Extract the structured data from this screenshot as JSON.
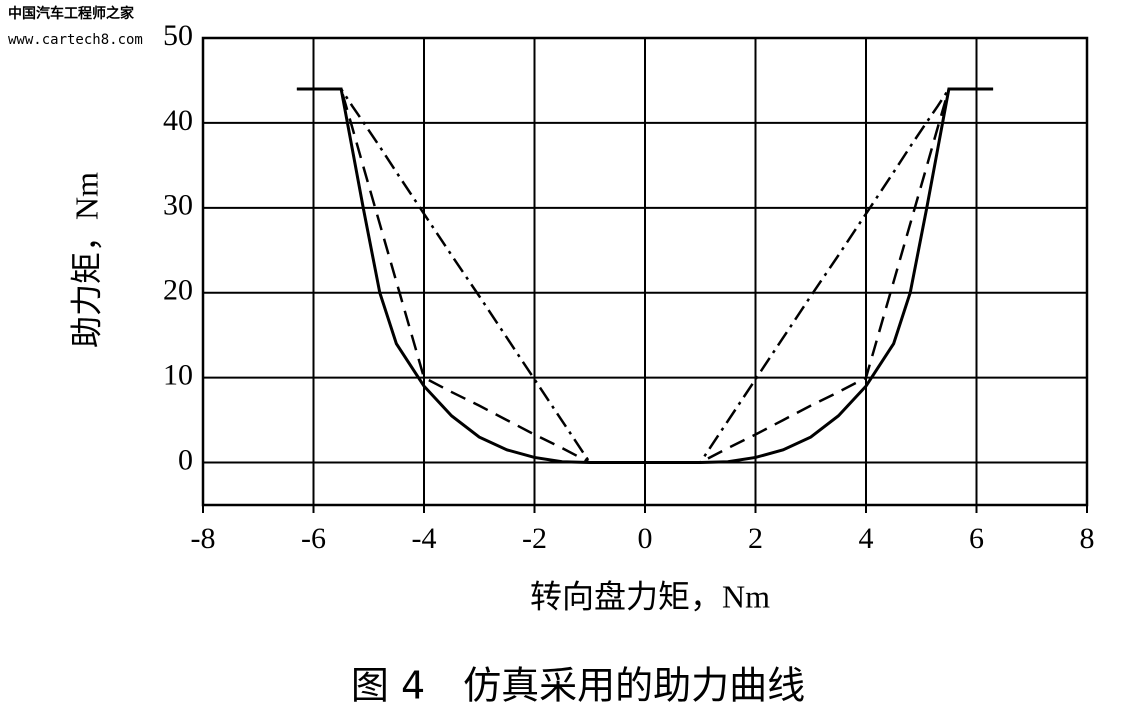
{
  "watermark": {
    "line1": "中国汽车工程师之家",
    "line2": "www.cartech8.com"
  },
  "chart_data": {
    "type": "line",
    "xlabel": "转向盘力矩，Nm",
    "ylabel": "助力矩，Nm",
    "caption": "图 4　仿真采用的助力曲线",
    "x": [
      -6.3,
      -5.5,
      -5.3,
      -5.1,
      -4.8,
      -4.5,
      -4,
      -3.5,
      -3,
      -2.5,
      -2,
      -1.5,
      -1,
      0,
      1,
      1.5,
      2,
      2.5,
      3,
      3.5,
      4,
      4.5,
      4.8,
      5.1,
      5.3,
      5.5,
      6.3
    ],
    "series": [
      {
        "color": "#000000",
        "dash": "solid",
        "values": [
          44,
          44,
          37,
          30,
          20,
          14,
          9,
          5.5,
          3,
          1.5,
          0.6,
          0.1,
          0,
          0,
          0,
          0.1,
          0.6,
          1.5,
          3,
          5.5,
          9,
          14,
          20,
          30,
          37,
          44,
          44
        ]
      },
      {
        "color": "#000000",
        "dash": "dashed",
        "values": [
          44,
          44,
          39.5,
          34.9,
          28.1,
          21.3,
          10,
          8.3,
          6.7,
          5,
          3.3,
          1.7,
          0,
          0,
          0,
          1.7,
          3.3,
          5,
          6.7,
          8.3,
          10,
          21.3,
          28.1,
          34.9,
          39.5,
          44,
          44
        ]
      },
      {
        "color": "#000000",
        "dash": "dashdot",
        "values": [
          44,
          44,
          42,
          40.1,
          37.2,
          34.2,
          29.3,
          24.4,
          19.6,
          14.7,
          9.8,
          4.9,
          0,
          0,
          0,
          4.9,
          9.8,
          14.7,
          19.6,
          24.4,
          29.3,
          34.2,
          37.2,
          40.1,
          42,
          44,
          44
        ]
      }
    ],
    "xlim": [
      -8,
      8
    ],
    "xticks": [
      -8,
      -6,
      -4,
      -2,
      0,
      2,
      4,
      6,
      8
    ],
    "ylim": [
      -5,
      50
    ],
    "yticks": [
      0,
      10,
      20,
      30,
      40,
      50
    ],
    "grid": true
  }
}
